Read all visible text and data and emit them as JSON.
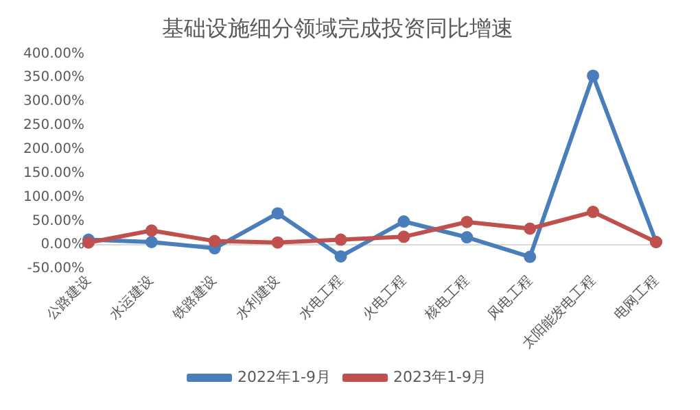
{
  "chart_data": {
    "type": "line",
    "title": "基础设施细分领域完成投资同比增速",
    "categories": [
      "公路建设",
      "水运建设",
      "铁路建设",
      "水利建设",
      "水电工程",
      "火电工程",
      "核电工程",
      "风电工程",
      "太阳能发电工程",
      "电网工程"
    ],
    "series": [
      {
        "name": "2022年1-9月",
        "color": "#4a7ebb",
        "values": [
          11,
          6,
          -7,
          66,
          -24,
          49,
          16,
          -25,
          354,
          6
        ]
      },
      {
        "name": "2023年1-9月",
        "color": "#c0504d",
        "values": [
          5,
          30,
          8,
          5,
          11,
          17,
          48,
          34,
          69,
          6
        ]
      }
    ],
    "ylim": [
      -50,
      400
    ],
    "yticks": [
      {
        "value": -50,
        "label": "-50.00%"
      },
      {
        "value": 0,
        "label": "0.00%"
      },
      {
        "value": 50,
        "label": "50.00%"
      },
      {
        "value": 100,
        "label": "100.00%"
      },
      {
        "value": 150,
        "label": "150.00%"
      },
      {
        "value": 200,
        "label": "200.00%"
      },
      {
        "value": 250,
        "label": "250.00%"
      },
      {
        "value": 300,
        "label": "300.00%"
      },
      {
        "value": 350,
        "label": "350.00%"
      },
      {
        "value": 400,
        "label": "400.00%"
      }
    ],
    "grid": false,
    "legend": "bottom",
    "marker": "circle",
    "line_style": "solid"
  }
}
